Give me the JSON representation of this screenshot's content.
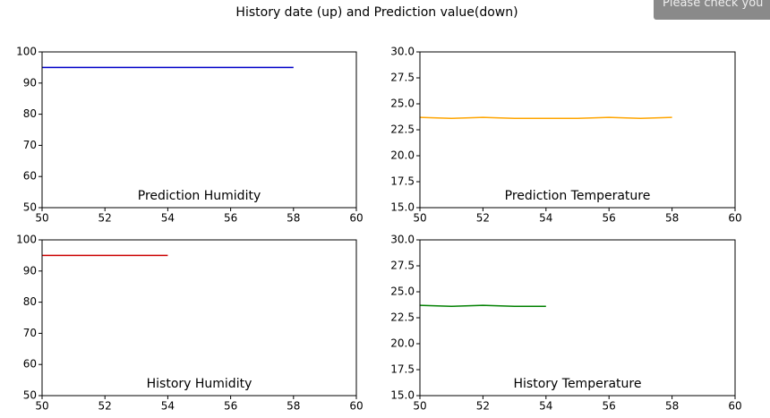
{
  "title": "History date (up) and Prediction value(down)",
  "notice": "Please check you",
  "chart_data": [
    {
      "type": "line",
      "label": "Prediction Humidity",
      "x": [
        50,
        51,
        52,
        53,
        54,
        55,
        56,
        57,
        58
      ],
      "series": [
        {
          "color": "#0000c8",
          "values": [
            95,
            95,
            95,
            95,
            95,
            95,
            95,
            95,
            95
          ]
        }
      ],
      "xlim": [
        50,
        60
      ],
      "xticks": [
        50,
        52,
        54,
        56,
        58,
        60
      ],
      "ylim": [
        50,
        100
      ],
      "yticks": [
        50,
        60,
        70,
        80,
        90,
        100
      ]
    },
    {
      "type": "line",
      "label": "Prediction Temperature",
      "x": [
        50,
        51,
        52,
        53,
        54,
        55,
        56,
        57,
        58
      ],
      "series": [
        {
          "color": "#ffa500",
          "values": [
            23.7,
            23.6,
            23.7,
            23.6,
            23.6,
            23.6,
            23.7,
            23.6,
            23.7
          ]
        }
      ],
      "xlim": [
        50,
        60
      ],
      "xticks": [
        50,
        52,
        54,
        56,
        58,
        60
      ],
      "ylim": [
        15,
        30
      ],
      "yticks": [
        {
          "value": 15,
          "label": "15.0"
        },
        17.5,
        {
          "value": 20,
          "label": "20.0"
        },
        22.5,
        {
          "value": 25,
          "label": "25.0"
        },
        27.5,
        {
          "value": 30,
          "label": "30.0"
        }
      ]
    },
    {
      "type": "line",
      "label": "History Humidity",
      "x": [
        50,
        51,
        52,
        53,
        54
      ],
      "series": [
        {
          "color": "#cc0000",
          "values": [
            95,
            95,
            95,
            95,
            95
          ]
        }
      ],
      "xlim": [
        50,
        60
      ],
      "xticks": [
        50,
        52,
        54,
        56,
        58,
        60
      ],
      "ylim": [
        50,
        100
      ],
      "yticks": [
        50,
        60,
        70,
        80,
        90,
        100
      ]
    },
    {
      "type": "line",
      "label": "History Temperature",
      "x": [
        50,
        51,
        52,
        53,
        54
      ],
      "series": [
        {
          "color": "#008000",
          "values": [
            23.7,
            23.6,
            23.7,
            23.6,
            23.6
          ]
        }
      ],
      "xlim": [
        50,
        60
      ],
      "xticks": [
        50,
        52,
        54,
        56,
        58,
        60
      ],
      "ylim": [
        15,
        30
      ],
      "yticks": [
        {
          "value": 15,
          "label": "15.0"
        },
        17.5,
        {
          "value": 20,
          "label": "20.0"
        },
        22.5,
        {
          "value": 25,
          "label": "25.0"
        },
        27.5,
        {
          "value": 30,
          "label": "30.0"
        }
      ]
    }
  ]
}
